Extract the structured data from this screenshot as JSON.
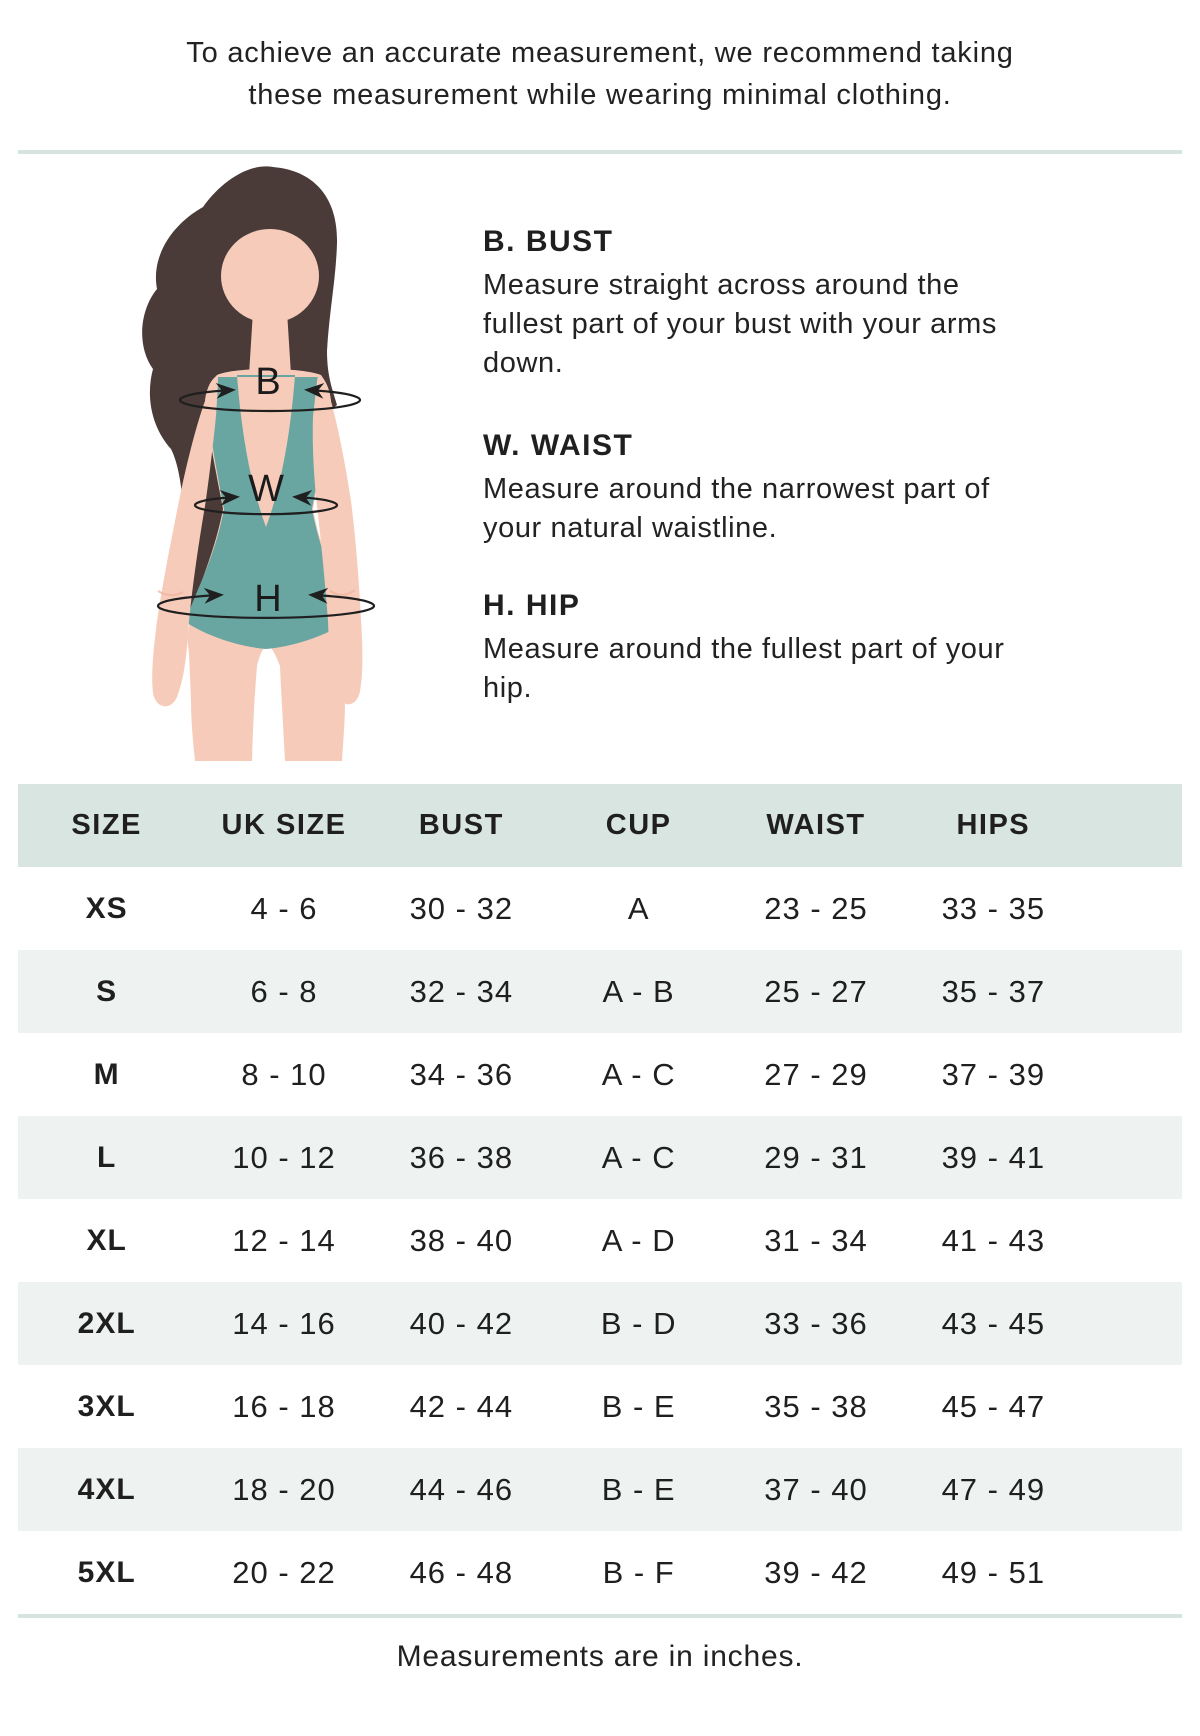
{
  "intro": {
    "lines": [
      "To achieve an accurate measurement, we recommend taking",
      "these measurement while wearing minimal clothing."
    ]
  },
  "figure": {
    "bust_label": "B",
    "waist_label": "W",
    "hip_label": "H"
  },
  "guide": {
    "sections": [
      {
        "title": "B. BUST",
        "lines": [
          "Measure straight across around the",
          "fullest part of your bust with your arms",
          "down."
        ]
      },
      {
        "title": "W. WAIST",
        "lines": [
          "Measure around the narrowest part of",
          "your natural waistline."
        ]
      },
      {
        "title": "H. HIP",
        "lines": [
          "Measure around the fullest part of your",
          "hip."
        ]
      }
    ]
  },
  "table": {
    "headers": [
      "SIZE",
      "UK SIZE",
      "BUST",
      "CUP",
      "WAIST",
      "HIPS"
    ],
    "rows": [
      [
        "XS",
        "4 - 6",
        "30 - 32",
        "A",
        "23 - 25",
        "33 - 35"
      ],
      [
        "S",
        "6 - 8",
        "32 - 34",
        "A - B",
        "25 - 27",
        "35 - 37"
      ],
      [
        "M",
        "8 - 10",
        "34 - 36",
        "A - C",
        "27 - 29",
        "37 - 39"
      ],
      [
        "L",
        "10 - 12",
        "36 - 38",
        "A - C",
        "29 - 31",
        "39 - 41"
      ],
      [
        "XL",
        "12 - 14",
        "38 - 40",
        "A - D",
        "31 - 34",
        "41 - 43"
      ],
      [
        "2XL",
        "14 - 16",
        "40 - 42",
        "B - D",
        "33 - 36",
        "43 - 45"
      ],
      [
        "3XL",
        "16 - 18",
        "42 - 44",
        "B - E",
        "35 - 38",
        "45 - 47"
      ],
      [
        "4XL",
        "18 - 20",
        "44 - 46",
        "B - E",
        "37 - 40",
        "47 - 49"
      ],
      [
        "5XL",
        "20 - 22",
        "46 - 48",
        "B - F",
        "39 - 42",
        "49 - 51"
      ]
    ]
  },
  "footer": {
    "note": "Measurements are in inches."
  },
  "colors": {
    "header-bg": "#d9e5e0",
    "row-alt": "#eef3f1",
    "divider": "#d6e3de",
    "text": "#1f1f1f",
    "skin": "#f7cbb9",
    "skin-line": "#edb5a1",
    "hair": "#4a3b38",
    "suit": "#69a6a2",
    "line": "#1f1f1f"
  }
}
